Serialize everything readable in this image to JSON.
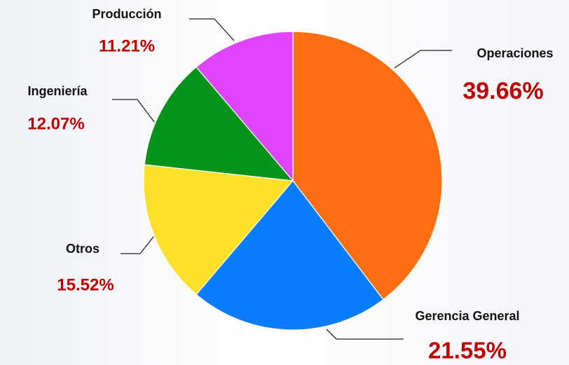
{
  "chart_data": {
    "type": "pie",
    "categories": [
      "Operaciones",
      "Gerencia General",
      "Otros",
      "Ingeniería",
      "Producción"
    ],
    "values": [
      39.66,
      21.55,
      15.52,
      12.07,
      11.21
    ],
    "value_labels": [
      "39.66%",
      "21.55%",
      "15.52%",
      "12.07%",
      "11.21%"
    ],
    "colors": [
      "#ff6f11",
      "#0a7dff",
      "#fde02a",
      "#06931a",
      "#df44fa"
    ]
  }
}
